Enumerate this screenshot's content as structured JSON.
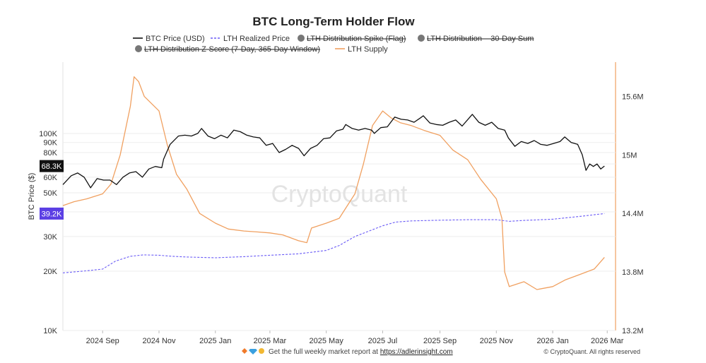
{
  "chart_data": {
    "type": "line",
    "title": "BTC Long-Term Holder Flow",
    "ylabel": "BTC Price ($)",
    "y_scale": "log",
    "ylim": [
      10000,
      230000
    ],
    "y2lim": [
      13200000,
      15950000
    ],
    "xlim": [
      "2024-07-20",
      "2026-03-10"
    ],
    "grid": "horizontal",
    "legend_placement": "top-center",
    "y_ticks": [
      {
        "value": 10000,
        "label": "10K"
      },
      {
        "value": 20000,
        "label": "20K"
      },
      {
        "value": 30000,
        "label": "30K"
      },
      {
        "value": 40000,
        "label": "40K"
      },
      {
        "value": 50000,
        "label": "50K"
      },
      {
        "value": 60000,
        "label": "60K"
      },
      {
        "value": 70000,
        "label": "70K"
      },
      {
        "value": 80000,
        "label": "80K"
      },
      {
        "value": 90000,
        "label": "90K"
      },
      {
        "value": 100000,
        "label": "100K"
      }
    ],
    "y2_ticks": [
      {
        "value": 13200000,
        "label": "13.2M"
      },
      {
        "value": 13800000,
        "label": "13.8M"
      },
      {
        "value": 14400000,
        "label": "14.4M"
      },
      {
        "value": 15000000,
        "label": "15M"
      },
      {
        "value": 15600000,
        "label": "15.6M"
      }
    ],
    "x_ticks": [
      {
        "date": "2024-09-01",
        "label": "2024 Sep"
      },
      {
        "date": "2024-11-01",
        "label": "2024 Nov"
      },
      {
        "date": "2025-01-01",
        "label": "2025 Jan"
      },
      {
        "date": "2025-03-01",
        "label": "2025 Mar"
      },
      {
        "date": "2025-05-01",
        "label": "2025 May"
      },
      {
        "date": "2025-07-01",
        "label": "2025 Jul"
      },
      {
        "date": "2025-09-01",
        "label": "2025 Sep"
      },
      {
        "date": "2025-11-01",
        "label": "2025 Nov"
      },
      {
        "date": "2026-01-01",
        "label": "2026 Jan"
      },
      {
        "date": "2026-03-01",
        "label": "2026 Mar"
      }
    ],
    "legend": [
      {
        "name": "BTC Price (USD)",
        "style": "line",
        "color": "#111111",
        "hidden": false
      },
      {
        "name": "LTH Realized Price",
        "style": "dashed",
        "color": "#6b5cf6",
        "hidden": false
      },
      {
        "name": "LTH Distribution Spike (Flag)",
        "style": "dot",
        "color": "#777777",
        "hidden": true
      },
      {
        "name": "LTH Distribution – 30-Day Sum",
        "style": "dot",
        "color": "#777777",
        "hidden": true
      },
      {
        "name": "LTH Distribution Z-Score (7-Day, 365-Day Window)",
        "style": "dot",
        "color": "#777777",
        "hidden": true
      },
      {
        "name": "LTH Supply",
        "style": "line",
        "color": "#f0a060",
        "hidden": false
      }
    ],
    "badges": {
      "price": {
        "label": "68.3K",
        "value": 68300,
        "color": "#111111"
      },
      "realized": {
        "label": "39.2K",
        "value": 39200,
        "color": "#5b3fe4"
      }
    },
    "series": [
      {
        "name": "BTC Price (USD)",
        "axis": "left",
        "color": "#111111",
        "points": [
          [
            "2024-07-20",
            55000
          ],
          [
            "2024-07-29",
            61000
          ],
          [
            "2024-08-05",
            63000
          ],
          [
            "2024-08-12",
            60000
          ],
          [
            "2024-08-19",
            53000
          ],
          [
            "2024-08-26",
            59000
          ],
          [
            "2024-09-02",
            58000
          ],
          [
            "2024-09-09",
            58000
          ],
          [
            "2024-09-16",
            55000
          ],
          [
            "2024-09-23",
            60000
          ],
          [
            "2024-09-30",
            63000
          ],
          [
            "2024-10-07",
            64000
          ],
          [
            "2024-10-14",
            60000
          ],
          [
            "2024-10-21",
            66000
          ],
          [
            "2024-10-28",
            68000
          ],
          [
            "2024-11-04",
            67000
          ],
          [
            "2024-11-06",
            74000
          ],
          [
            "2024-11-13",
            88000
          ],
          [
            "2024-11-22",
            97000
          ],
          [
            "2024-11-29",
            98000
          ],
          [
            "2024-12-06",
            97000
          ],
          [
            "2024-12-13",
            100000
          ],
          [
            "2024-12-17",
            106000
          ],
          [
            "2024-12-24",
            97000
          ],
          [
            "2024-12-31",
            94000
          ],
          [
            "2025-01-07",
            98000
          ],
          [
            "2025-01-14",
            95000
          ],
          [
            "2025-01-21",
            104000
          ],
          [
            "2025-01-28",
            102000
          ],
          [
            "2025-02-04",
            98000
          ],
          [
            "2025-02-11",
            96000
          ],
          [
            "2025-02-18",
            95000
          ],
          [
            "2025-02-25",
            87000
          ],
          [
            "2025-03-04",
            89000
          ],
          [
            "2025-03-11",
            80000
          ],
          [
            "2025-03-18",
            83000
          ],
          [
            "2025-03-25",
            87000
          ],
          [
            "2025-04-01",
            84000
          ],
          [
            "2025-04-07",
            77000
          ],
          [
            "2025-04-14",
            84000
          ],
          [
            "2025-04-21",
            87000
          ],
          [
            "2025-04-28",
            94000
          ],
          [
            "2025-05-05",
            95000
          ],
          [
            "2025-05-12",
            103000
          ],
          [
            "2025-05-19",
            105000
          ],
          [
            "2025-05-22",
            111000
          ],
          [
            "2025-05-29",
            106000
          ],
          [
            "2025-06-05",
            104000
          ],
          [
            "2025-06-12",
            106000
          ],
          [
            "2025-06-19",
            104000
          ],
          [
            "2025-06-22",
            100000
          ],
          [
            "2025-06-29",
            107000
          ],
          [
            "2025-07-06",
            108000
          ],
          [
            "2025-07-14",
            121000
          ],
          [
            "2025-07-21",
            118000
          ],
          [
            "2025-07-28",
            117000
          ],
          [
            "2025-08-04",
            114000
          ],
          [
            "2025-08-11",
            120000
          ],
          [
            "2025-08-14",
            123000
          ],
          [
            "2025-08-21",
            113000
          ],
          [
            "2025-08-28",
            111000
          ],
          [
            "2025-09-04",
            110000
          ],
          [
            "2025-09-11",
            114000
          ],
          [
            "2025-09-18",
            117000
          ],
          [
            "2025-09-25",
            109000
          ],
          [
            "2025-10-02",
            119000
          ],
          [
            "2025-10-06",
            125000
          ],
          [
            "2025-10-13",
            114000
          ],
          [
            "2025-10-20",
            110000
          ],
          [
            "2025-10-27",
            114000
          ],
          [
            "2025-11-03",
            106000
          ],
          [
            "2025-11-10",
            104000
          ],
          [
            "2025-11-14",
            95000
          ],
          [
            "2025-11-21",
            86000
          ],
          [
            "2025-11-28",
            91000
          ],
          [
            "2025-12-05",
            89000
          ],
          [
            "2025-12-12",
            92000
          ],
          [
            "2025-12-19",
            88000
          ],
          [
            "2025-12-26",
            87000
          ],
          [
            "2026-01-02",
            89000
          ],
          [
            "2026-01-09",
            91000
          ],
          [
            "2026-01-14",
            96000
          ],
          [
            "2026-01-21",
            90000
          ],
          [
            "2026-01-28",
            88000
          ],
          [
            "2026-02-02",
            78000
          ],
          [
            "2026-02-06",
            65000
          ],
          [
            "2026-02-10",
            70000
          ],
          [
            "2026-02-14",
            68000
          ],
          [
            "2026-02-18",
            70000
          ],
          [
            "2026-02-22",
            66000
          ],
          [
            "2026-02-26",
            68300
          ]
        ]
      },
      {
        "name": "LTH Realized Price",
        "axis": "left",
        "color": "#6b5cf6",
        "points": [
          [
            "2024-07-20",
            19600
          ],
          [
            "2024-08-15",
            20100
          ],
          [
            "2024-09-01",
            20500
          ],
          [
            "2024-09-15",
            22500
          ],
          [
            "2024-10-01",
            23800
          ],
          [
            "2024-10-15",
            24200
          ],
          [
            "2024-11-01",
            24100
          ],
          [
            "2024-11-15",
            23800
          ],
          [
            "2024-12-01",
            23600
          ],
          [
            "2025-01-01",
            23400
          ],
          [
            "2025-02-01",
            23700
          ],
          [
            "2025-03-01",
            24100
          ],
          [
            "2025-04-01",
            24500
          ],
          [
            "2025-05-01",
            25500
          ],
          [
            "2025-05-15",
            27000
          ],
          [
            "2025-06-01",
            30000
          ],
          [
            "2025-07-01",
            34000
          ],
          [
            "2025-07-15",
            35500
          ],
          [
            "2025-08-01",
            36000
          ],
          [
            "2025-09-01",
            36300
          ],
          [
            "2025-10-01",
            36500
          ],
          [
            "2025-11-01",
            36500
          ],
          [
            "2025-11-15",
            35800
          ],
          [
            "2025-12-01",
            36200
          ],
          [
            "2026-01-01",
            36700
          ],
          [
            "2026-02-01",
            38000
          ],
          [
            "2026-02-26",
            39200
          ]
        ]
      },
      {
        "name": "LTH Supply",
        "axis": "right",
        "color": "#f0a060",
        "points": [
          [
            "2024-07-20",
            14480000
          ],
          [
            "2024-08-01",
            14520000
          ],
          [
            "2024-08-15",
            14550000
          ],
          [
            "2024-09-01",
            14600000
          ],
          [
            "2024-09-10",
            14700000
          ],
          [
            "2024-09-20",
            15000000
          ],
          [
            "2024-10-01",
            15500000
          ],
          [
            "2024-10-05",
            15800000
          ],
          [
            "2024-10-10",
            15750000
          ],
          [
            "2024-10-16",
            15600000
          ],
          [
            "2024-11-01",
            15450000
          ],
          [
            "2024-11-10",
            15100000
          ],
          [
            "2024-11-20",
            14800000
          ],
          [
            "2024-12-01",
            14650000
          ],
          [
            "2024-12-15",
            14400000
          ],
          [
            "2025-01-01",
            14300000
          ],
          [
            "2025-01-15",
            14240000
          ],
          [
            "2025-02-01",
            14220000
          ],
          [
            "2025-02-15",
            14210000
          ],
          [
            "2025-03-01",
            14200000
          ],
          [
            "2025-03-15",
            14180000
          ],
          [
            "2025-04-01",
            14120000
          ],
          [
            "2025-04-10",
            14100000
          ],
          [
            "2025-04-15",
            14250000
          ],
          [
            "2025-05-01",
            14300000
          ],
          [
            "2025-05-15",
            14350000
          ],
          [
            "2025-06-01",
            14600000
          ],
          [
            "2025-06-10",
            14900000
          ],
          [
            "2025-06-20",
            15300000
          ],
          [
            "2025-07-01",
            15450000
          ],
          [
            "2025-07-10",
            15380000
          ],
          [
            "2025-07-20",
            15330000
          ],
          [
            "2025-08-01",
            15300000
          ],
          [
            "2025-08-15",
            15250000
          ],
          [
            "2025-09-01",
            15200000
          ],
          [
            "2025-09-15",
            15050000
          ],
          [
            "2025-10-01",
            14950000
          ],
          [
            "2025-10-15",
            14750000
          ],
          [
            "2025-11-01",
            14550000
          ],
          [
            "2025-11-07",
            14350000
          ],
          [
            "2025-11-10",
            13800000
          ],
          [
            "2025-11-15",
            13650000
          ],
          [
            "2025-12-01",
            13700000
          ],
          [
            "2025-12-15",
            13620000
          ],
          [
            "2026-01-01",
            13650000
          ],
          [
            "2026-01-15",
            13720000
          ],
          [
            "2026-02-01",
            13780000
          ],
          [
            "2026-02-15",
            13830000
          ],
          [
            "2026-02-26",
            13950000
          ]
        ]
      }
    ],
    "watermark": "CryptoQuant",
    "footer": {
      "prefix": "Get the full weekly market report at ",
      "link": "https://adlerinsight.com"
    },
    "credit": "© CryptoQuant. All rights reserved"
  }
}
